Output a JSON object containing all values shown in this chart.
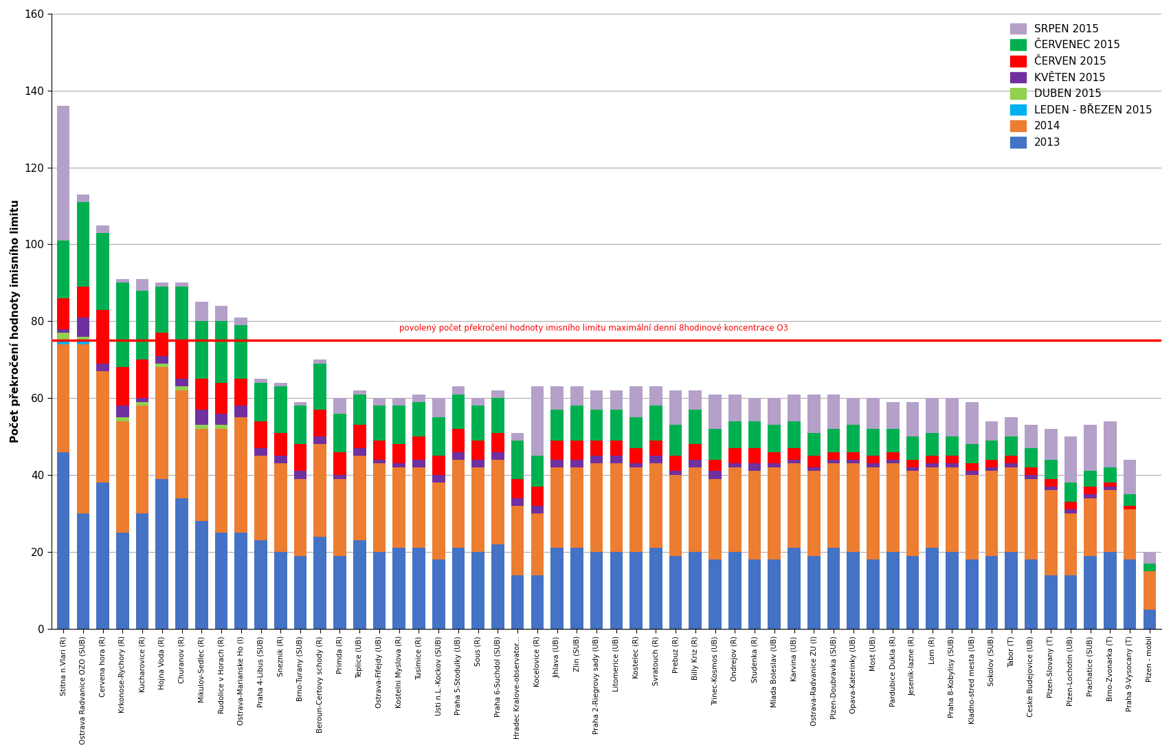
{
  "categories": [
    "Stitna n.Vlari (R)",
    "Ostrava Radvanice OZO (SUB)",
    "Cervena hora (R)",
    "Krkonose-Rychory (R)",
    "Kucharovice (R)",
    "Hojna Voda (R)",
    "Churanov (R)",
    "Mikulov-Sedlec (R)",
    "Rudolice v Horach (R)",
    "Ostrava-Marianske Ho (I)",
    "Praha 4-Libus (SUB)",
    "Sneznik (R)",
    "Brno-Turany (SUB)",
    "Beroun-Certovy schody (R)",
    "Primda (R)",
    "Teplice (UB)",
    "Ostrava-Fifejdy (UB)",
    "Kostelni Myslova (R)",
    "Tusimice (R)",
    "Usti n.L.-Kockov (SUB)",
    "Praha 5-Stodulky (UB)",
    "Sous (R)",
    "Praha 6-Suchdol (SUB)",
    "Hradec Kralove-observator...",
    "Kocelovice (R)",
    "Jihlava (UB)",
    "Zlin (SUB)",
    "Praha 2-Riegrovy sady (UB)",
    "Litomerice (UB)",
    "Kostelec (R)",
    "Svratouch (R)",
    "Prebuz (R)",
    "Billy Kriz (R)",
    "Trinec-Kosmos (UB)",
    "Ondrejov (R)",
    "Studenka (R)",
    "Mlada Boleslav (UB)",
    "Karvina (UB)",
    "Ostrava-Radvanice ZU (I)",
    "Plzen-Doubravka (SUB)",
    "Opava-Katerinky (UB)",
    "Most (UB)",
    "Pardubice Dukla (R)",
    "Jesenik-lazne (R)",
    "Lom (R)",
    "Praha 8-Kobylisy (SUB)",
    "Kladno-stred mesta (UB)",
    "Sokolov (SUB)",
    "Tabor (T)",
    "Ceske Budejovice (UB)",
    "Plzen-Slovany (T)",
    "Plzen-Lochotin (UB)",
    "Prachatice (SUB)",
    "Brno-Zvonarka (T)",
    "Praha 9-Vysocany (T)",
    "Plzen - mobil"
  ],
  "series": {
    "2013": [
      46,
      30,
      38,
      25,
      30,
      39,
      34,
      28,
      25,
      25,
      23,
      20,
      19,
      24,
      19,
      23,
      20,
      21,
      21,
      18,
      21,
      20,
      22,
      14,
      14,
      21,
      21,
      20,
      20,
      20,
      21,
      19,
      20,
      18,
      20,
      18,
      18,
      21,
      19,
      21,
      20,
      18,
      20,
      19,
      21,
      20,
      18,
      19,
      20,
      18,
      14,
      14,
      19,
      20,
      18,
      5
    ],
    "2014": [
      28,
      44,
      29,
      29,
      28,
      29,
      28,
      24,
      27,
      30,
      22,
      23,
      20,
      24,
      20,
      22,
      23,
      21,
      21,
      20,
      23,
      22,
      22,
      18,
      16,
      21,
      21,
      23,
      23,
      22,
      22,
      21,
      22,
      21,
      22,
      23,
      24,
      22,
      22,
      22,
      23,
      24,
      23,
      22,
      21,
      22,
      22,
      22,
      22,
      21,
      22,
      16,
      15,
      16,
      13,
      10
    ],
    "leden_brezen_2015": [
      1,
      1,
      0,
      0,
      0,
      0,
      0,
      0,
      0,
      0,
      0,
      0,
      0,
      0,
      0,
      0,
      0,
      0,
      0,
      0,
      0,
      0,
      0,
      0,
      0,
      0,
      0,
      0,
      0,
      0,
      0,
      0,
      0,
      0,
      0,
      0,
      0,
      0,
      0,
      0,
      0,
      0,
      0,
      0,
      0,
      0,
      0,
      0,
      0,
      0,
      0,
      0,
      0,
      0,
      0,
      0
    ],
    "duben_2015": [
      2,
      1,
      0,
      1,
      1,
      1,
      1,
      1,
      1,
      0,
      0,
      0,
      0,
      0,
      0,
      0,
      0,
      0,
      0,
      0,
      0,
      0,
      0,
      0,
      0,
      0,
      0,
      0,
      0,
      0,
      0,
      0,
      0,
      0,
      0,
      0,
      0,
      0,
      0,
      0,
      0,
      0,
      0,
      0,
      0,
      0,
      0,
      0,
      0,
      0,
      0,
      0,
      0,
      0,
      0,
      0
    ],
    "kveten_2015": [
      1,
      5,
      2,
      3,
      1,
      2,
      2,
      4,
      3,
      3,
      2,
      2,
      2,
      2,
      1,
      2,
      1,
      1,
      2,
      2,
      2,
      2,
      2,
      2,
      2,
      2,
      2,
      2,
      2,
      1,
      2,
      1,
      2,
      2,
      1,
      2,
      1,
      1,
      1,
      1,
      1,
      1,
      1,
      1,
      1,
      1,
      1,
      1,
      1,
      1,
      1,
      1,
      1,
      1,
      0,
      0
    ],
    "cerven_2015": [
      8,
      8,
      14,
      10,
      10,
      6,
      10,
      8,
      8,
      7,
      7,
      6,
      7,
      7,
      6,
      6,
      5,
      5,
      6,
      5,
      6,
      5,
      5,
      5,
      5,
      5,
      5,
      4,
      4,
      4,
      4,
      4,
      4,
      3,
      4,
      4,
      3,
      3,
      3,
      2,
      2,
      2,
      2,
      2,
      2,
      2,
      2,
      2,
      2,
      2,
      2,
      2,
      2,
      1,
      1,
      0
    ],
    "cervenec_2015": [
      15,
      22,
      20,
      22,
      18,
      12,
      14,
      15,
      16,
      14,
      10,
      12,
      10,
      12,
      10,
      8,
      9,
      10,
      9,
      10,
      9,
      9,
      9,
      10,
      8,
      8,
      9,
      8,
      8,
      8,
      9,
      8,
      9,
      8,
      7,
      7,
      7,
      7,
      6,
      6,
      7,
      7,
      6,
      6,
      6,
      5,
      5,
      5,
      5,
      5,
      5,
      5,
      4,
      4,
      3,
      2
    ],
    "srpen_2015": [
      35,
      2,
      2,
      1,
      3,
      1,
      1,
      5,
      4,
      2,
      1,
      1,
      1,
      1,
      4,
      1,
      2,
      2,
      2,
      5,
      2,
      2,
      2,
      2,
      18,
      6,
      5,
      5,
      5,
      8,
      5,
      9,
      5,
      9,
      7,
      6,
      7,
      7,
      10,
      9,
      7,
      8,
      7,
      9,
      9,
      10,
      11,
      5,
      5,
      6,
      8,
      12,
      12,
      12,
      9,
      3
    ]
  },
  "colors": {
    "2013": "#4472C4",
    "2014": "#ED7D31",
    "leden_brezen_2015": "#00B0F0",
    "duben_2015": "#92D050",
    "kveten_2015": "#7030A0",
    "cerven_2015": "#FF0000",
    "cervenec_2015": "#00B050",
    "srpen_2015": "#B4A0C8"
  },
  "legend_labels": {
    "srpen_2015": "SRPEN 2015",
    "cervenec_2015": "ČERVENEC 2015",
    "cerven_2015": "ČERVEN 2015",
    "kveten_2015": "KVĚTEN 2015",
    "duben_2015": "DUBEN 2015",
    "leden_brezen_2015": "LEDEN - BŘEZEN 2015",
    "2014": "2014",
    "2013": "2013"
  },
  "ylabel": "Počet překročení hodnoty imisního limitu",
  "ylim": [
    0,
    160
  ],
  "yticks": [
    0,
    20,
    40,
    60,
    80,
    100,
    120,
    140,
    160
  ],
  "red_line_y": 75,
  "red_line_text": "povolený počet překročení hodnoty imisního limitu maximální denní 8hodinové koncentrace O3",
  "background_color": "#FFFFFF"
}
